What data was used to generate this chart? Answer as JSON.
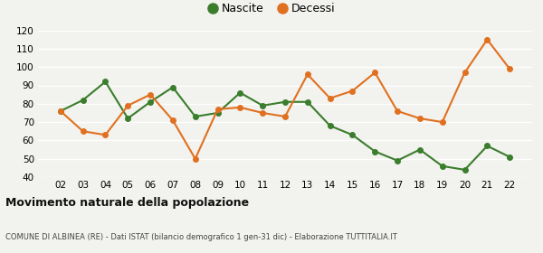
{
  "years": [
    "02",
    "03",
    "04",
    "05",
    "06",
    "07",
    "08",
    "09",
    "10",
    "11",
    "12",
    "13",
    "14",
    "15",
    "16",
    "17",
    "18",
    "19",
    "20",
    "21",
    "22"
  ],
  "nascite": [
    76,
    82,
    92,
    72,
    81,
    89,
    73,
    75,
    86,
    79,
    81,
    81,
    68,
    63,
    54,
    49,
    55,
    46,
    44,
    57,
    51
  ],
  "decessi": [
    76,
    65,
    63,
    79,
    85,
    71,
    50,
    77,
    78,
    75,
    73,
    96,
    83,
    87,
    97,
    76,
    72,
    70,
    97,
    115,
    99
  ],
  "nascite_color": "#3a7d2c",
  "decessi_color": "#e07020",
  "background_color": "#f2f2ee",
  "title": "Movimento naturale della popolazione",
  "subtitle": "COMUNE DI ALBINEA (RE) - Dati ISTAT (bilancio demografico 1 gen-31 dic) - Elaborazione TUTTITALIA.IT",
  "legend_nascite": "Nascite",
  "legend_decessi": "Decessi",
  "ylim": [
    40,
    120
  ],
  "yticks": [
    40,
    50,
    60,
    70,
    80,
    90,
    100,
    110,
    120
  ],
  "marker": "o",
  "marker_size": 4,
  "linewidth": 1.5
}
